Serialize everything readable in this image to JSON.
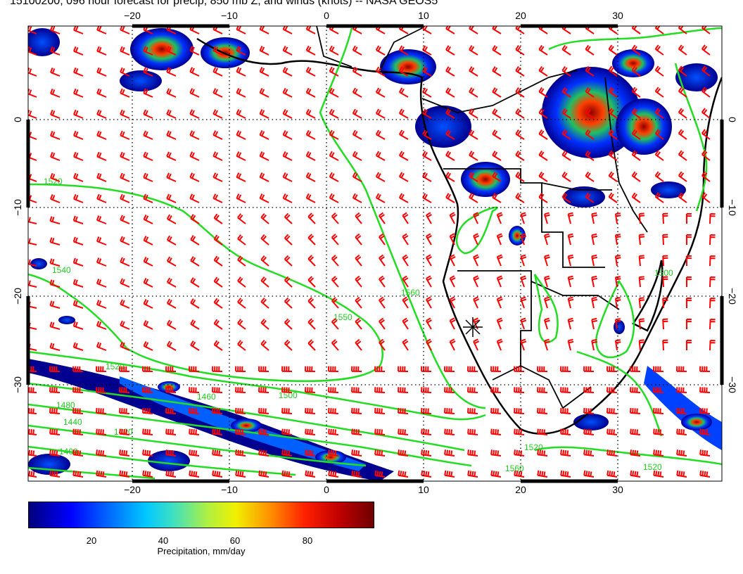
{
  "title": "15100200, 096 hour forecast for precip, 850 mb Z, and winds (knots) -- NASA GEOS5",
  "axes": {
    "lon_ticks": [
      "−20",
      "−10",
      "0",
      "10",
      "20",
      "30"
    ],
    "lat_ticks": [
      "0",
      "−10",
      "−20",
      "−30"
    ]
  },
  "contour_labels": [
    {
      "text": "1520",
      "rot": 0
    },
    {
      "text": "1540",
      "rot": 25
    },
    {
      "text": "1550",
      "rot": 70
    },
    {
      "text": "1560",
      "rot": 80
    },
    {
      "text": "1520",
      "rot": 5
    },
    {
      "text": "1500",
      "rot": 0
    },
    {
      "text": "1480",
      "rot": -20
    },
    {
      "text": "1460",
      "rot": -20
    },
    {
      "text": "1440",
      "rot": -20
    },
    {
      "text": "1420",
      "rot": -20
    },
    {
      "text": "1400",
      "rot": -20
    },
    {
      "text": "1500",
      "rot": -35
    },
    {
      "text": "1520",
      "rot": 0
    },
    {
      "text": "1560",
      "rot": 0
    },
    {
      "text": "1520",
      "rot": 0
    }
  ],
  "colorbar": {
    "ticks": [
      "20",
      "40",
      "60",
      "80"
    ],
    "label": "Precipitation, mm/day"
  },
  "colors": {
    "wind_barbs": "#ff0000",
    "contours": "#22dd22",
    "coastlines": "#000000",
    "precip_low": "#000080",
    "precip_high": "#800000"
  },
  "icons": {
    "station": "asterisk-marker"
  }
}
